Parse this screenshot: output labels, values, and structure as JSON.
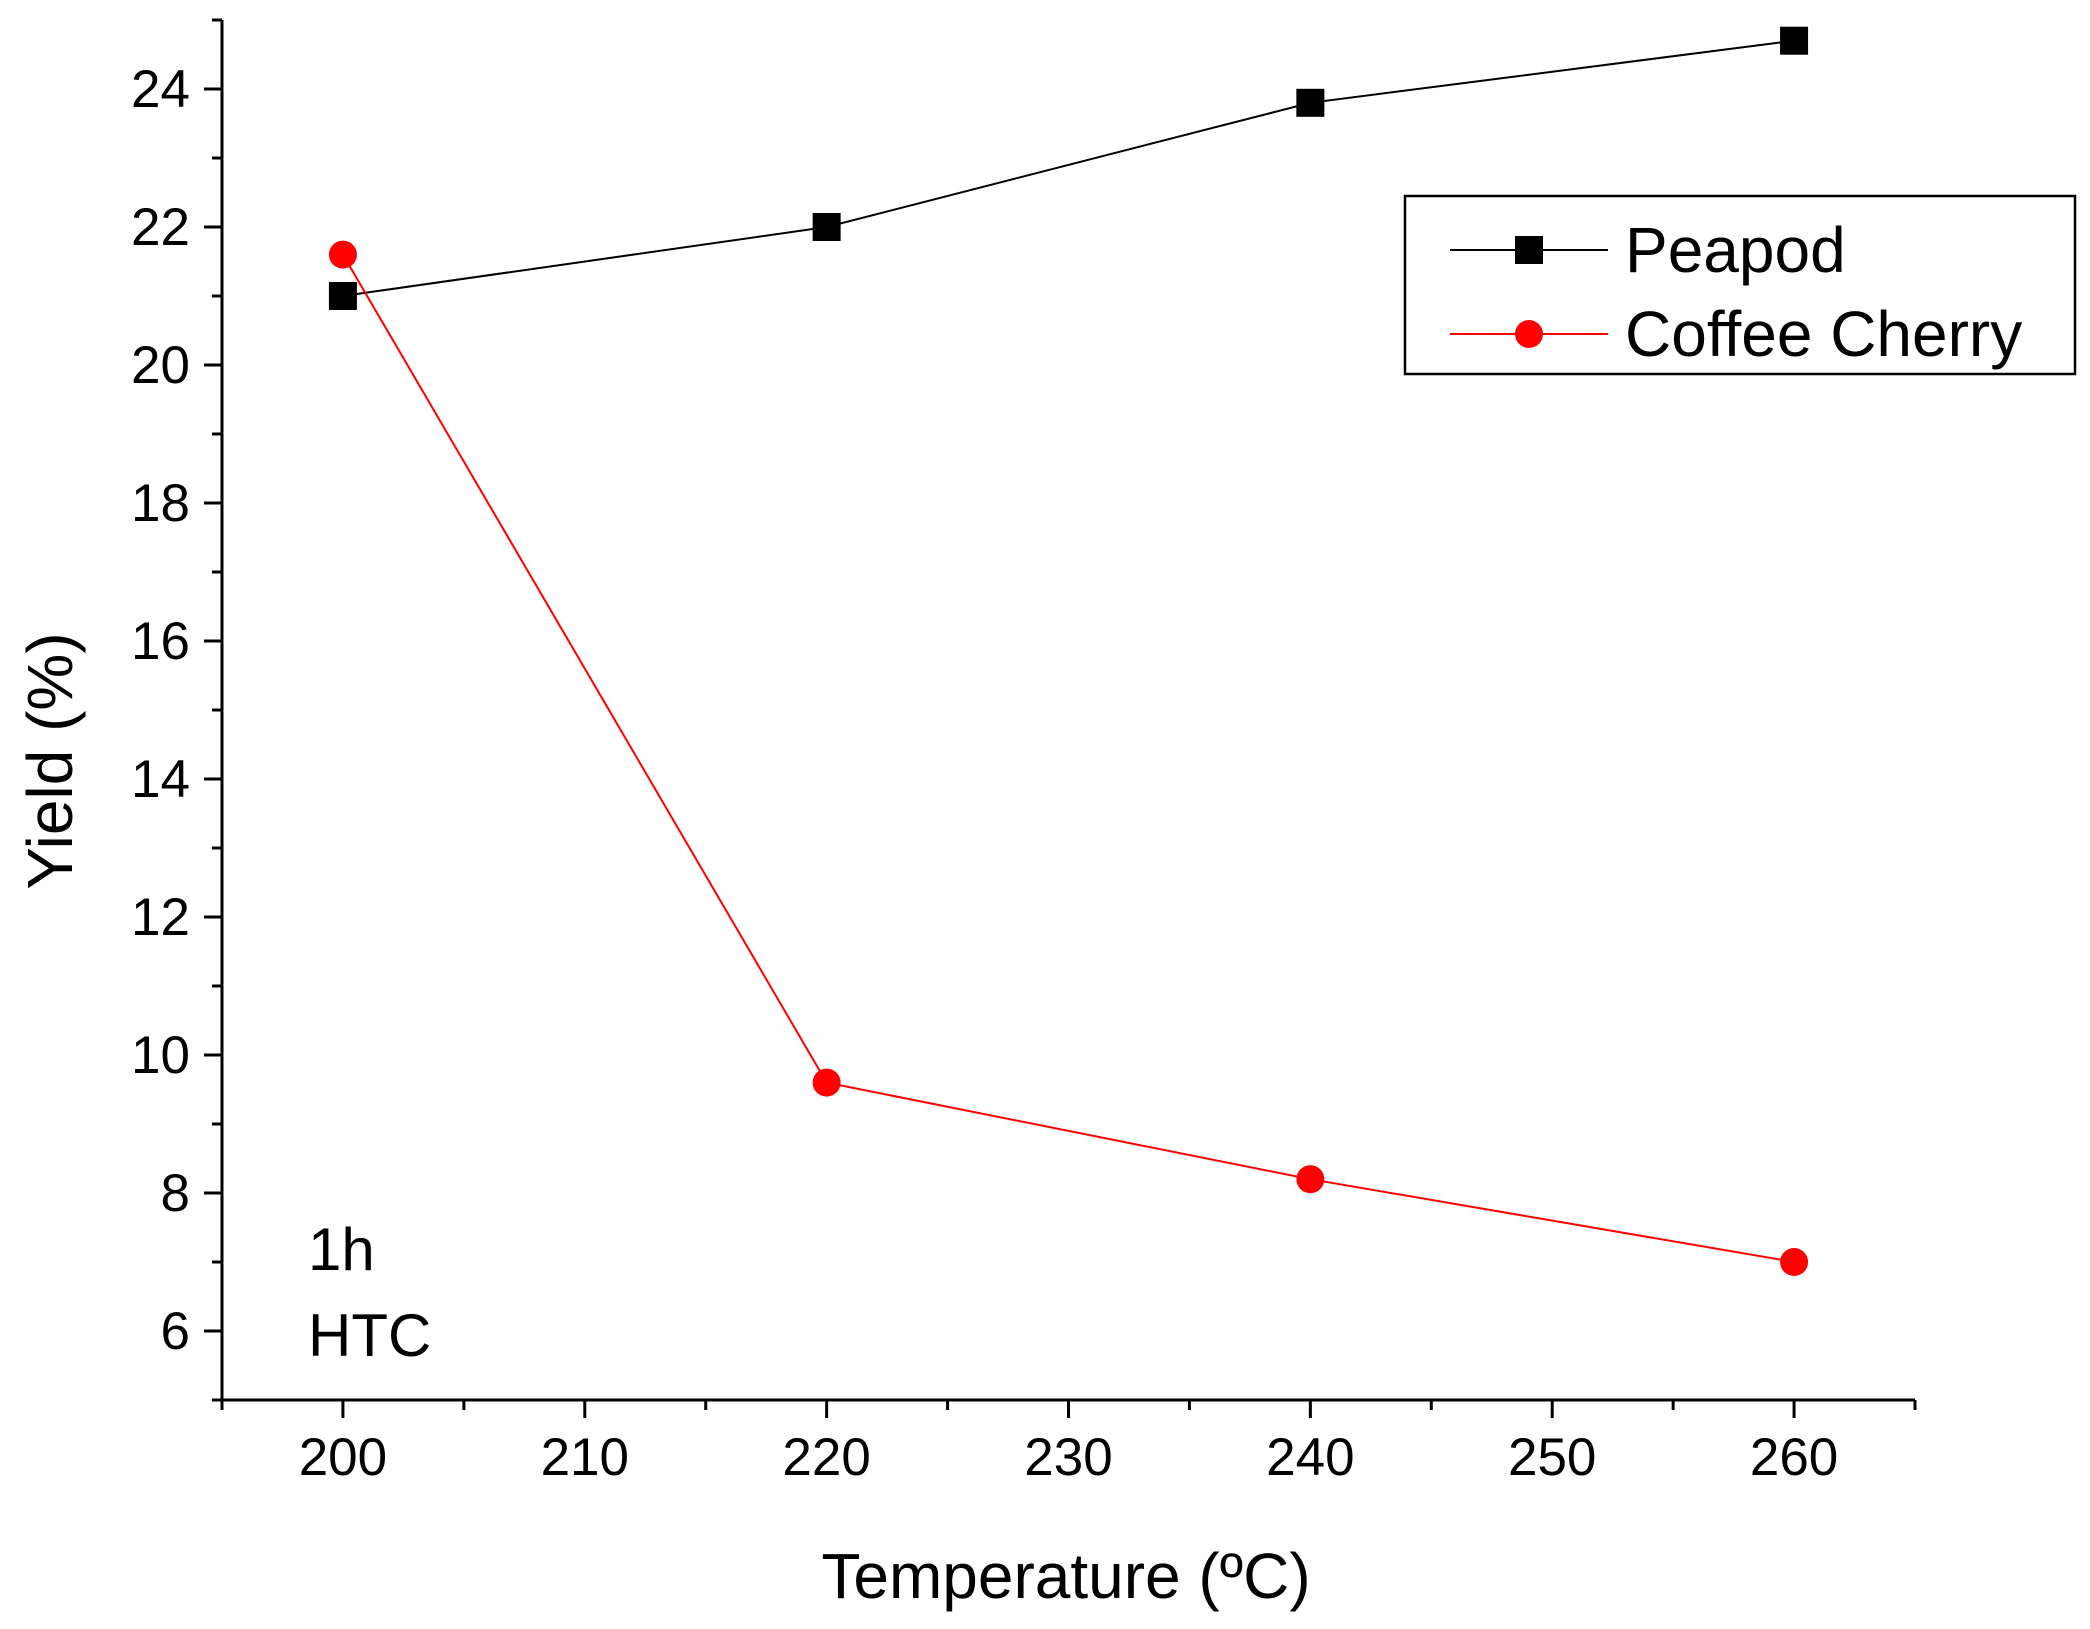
{
  "chart_data": {
    "type": "line",
    "title": "",
    "xlabel": "Temperature (ºC)",
    "ylabel": "Yield (%)",
    "xlim": [
      195,
      265
    ],
    "ylim": [
      5,
      25
    ],
    "x": [
      200,
      220,
      240,
      260
    ],
    "x_ticks": [
      200,
      210,
      220,
      230,
      240,
      250,
      260
    ],
    "x_tick_labels": [
      "200",
      "210",
      "220",
      "230",
      "240",
      "250",
      "260"
    ],
    "y_ticks": [
      6,
      8,
      10,
      12,
      14,
      16,
      18,
      20,
      22,
      24
    ],
    "y_tick_labels": [
      "6",
      "8",
      "10",
      "12",
      "14",
      "16",
      "18",
      "20",
      "22",
      "24"
    ],
    "grid": false,
    "legend_position": "top-right",
    "series": [
      {
        "name": "Peapod",
        "marker": "square",
        "color": "#000000",
        "values": [
          21.0,
          22.0,
          23.8,
          24.7
        ]
      },
      {
        "name": "Coffee Cherry",
        "marker": "circle",
        "color": "#ff0000",
        "values": [
          21.6,
          9.6,
          8.2,
          7.0
        ]
      }
    ],
    "annotations": [
      "1h",
      "HTC"
    ]
  }
}
